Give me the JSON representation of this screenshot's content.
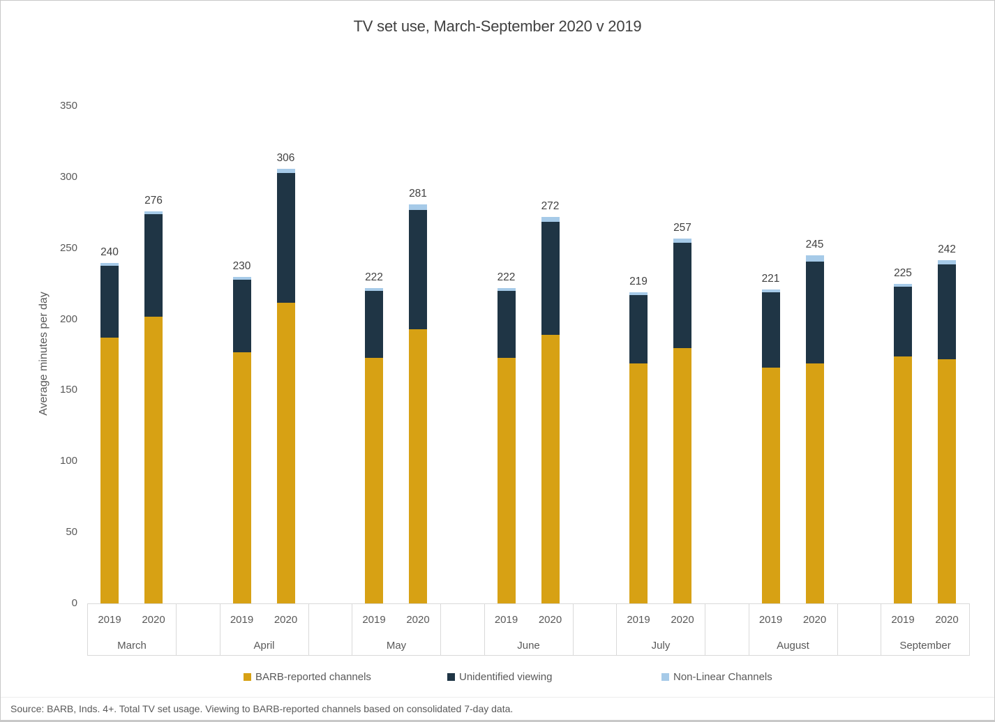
{
  "title": "TV set use, March-September 2020 v 2019",
  "source": "Source: BARB, Inds. 4+. Total TV set usage. Viewing to BARB-reported channels based on consolidated 7-day data.",
  "colors": {
    "barb": "#D7A114",
    "unidentified": "#1F3545",
    "nonlinear": "#A6CAE8",
    "axis_line": "#D9D9D9",
    "text": "#595959",
    "title_text": "#404040"
  },
  "legend": [
    {
      "key": "barb",
      "label": "BARB-reported channels"
    },
    {
      "key": "unidentified",
      "label": "Unidentified viewing"
    },
    {
      "key": "nonlinear",
      "label": "Non-Linear Channels"
    }
  ],
  "chart_data": {
    "type": "bar",
    "stacked": true,
    "title": "TV set use, March-September 2020 v 2019",
    "xlabel": "",
    "ylabel": "Average minutes per day",
    "ylim": [
      0,
      350
    ],
    "y_ticks": [
      0,
      50,
      100,
      150,
      200,
      250,
      300,
      350
    ],
    "grid": false,
    "legend_position": "bottom",
    "series_names": [
      "BARB-reported channels",
      "Unidentified viewing",
      "Non-Linear Channels"
    ],
    "categories": [
      "March",
      "April",
      "May",
      "June",
      "July",
      "August",
      "September"
    ],
    "months": [
      {
        "label": "March",
        "bars": [
          {
            "year": "2019",
            "barb": 187,
            "unidentified": 51,
            "nonlinear": 2,
            "total": 240
          },
          {
            "year": "2020",
            "barb": 202,
            "unidentified": 72,
            "nonlinear": 2,
            "total": 276
          }
        ]
      },
      {
        "label": "April",
        "bars": [
          {
            "year": "2019",
            "barb": 177,
            "unidentified": 51,
            "nonlinear": 2,
            "total": 230
          },
          {
            "year": "2020",
            "barb": 212,
            "unidentified": 91,
            "nonlinear": 3,
            "total": 306
          }
        ]
      },
      {
        "label": "May",
        "bars": [
          {
            "year": "2019",
            "barb": 173,
            "unidentified": 47,
            "nonlinear": 2,
            "total": 222
          },
          {
            "year": "2020",
            "barb": 193,
            "unidentified": 84,
            "nonlinear": 4,
            "total": 281
          }
        ]
      },
      {
        "label": "June",
        "bars": [
          {
            "year": "2019",
            "barb": 173,
            "unidentified": 47,
            "nonlinear": 2,
            "total": 222
          },
          {
            "year": "2020",
            "barb": 189,
            "unidentified": 80,
            "nonlinear": 3,
            "total": 272
          }
        ]
      },
      {
        "label": "July",
        "bars": [
          {
            "year": "2019",
            "barb": 169,
            "unidentified": 48,
            "nonlinear": 2,
            "total": 219
          },
          {
            "year": "2020",
            "barb": 180,
            "unidentified": 74,
            "nonlinear": 3,
            "total": 257
          }
        ]
      },
      {
        "label": "August",
        "bars": [
          {
            "year": "2019",
            "barb": 166,
            "unidentified": 53,
            "nonlinear": 2,
            "total": 221
          },
          {
            "year": "2020",
            "barb": 169,
            "unidentified": 72,
            "nonlinear": 4,
            "total": 245
          }
        ]
      },
      {
        "label": "September",
        "bars": [
          {
            "year": "2019",
            "barb": 174,
            "unidentified": 49,
            "nonlinear": 2,
            "total": 225
          },
          {
            "year": "2020",
            "barb": 172,
            "unidentified": 67,
            "nonlinear": 3,
            "total": 242
          }
        ]
      }
    ]
  }
}
